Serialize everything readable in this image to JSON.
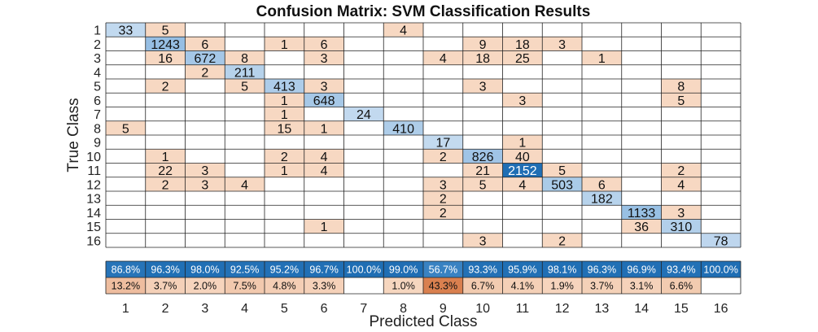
{
  "chart_data": {
    "type": "heatmap",
    "title": "Confusion Matrix: SVM Classification Results",
    "xlabel": "Predicted Class",
    "ylabel": "True Class",
    "classes": [
      "1",
      "2",
      "3",
      "4",
      "5",
      "6",
      "7",
      "8",
      "9",
      "10",
      "11",
      "12",
      "13",
      "14",
      "15",
      "16"
    ],
    "matrix": [
      [
        33,
        5,
        0,
        0,
        0,
        0,
        0,
        4,
        0,
        0,
        0,
        0,
        0,
        0,
        0,
        0
      ],
      [
        0,
        1243,
        6,
        0,
        1,
        6,
        0,
        0,
        0,
        9,
        18,
        3,
        0,
        0,
        0,
        0
      ],
      [
        0,
        16,
        672,
        8,
        0,
        3,
        0,
        0,
        4,
        18,
        25,
        0,
        1,
        0,
        0,
        0
      ],
      [
        0,
        0,
        2,
        211,
        0,
        0,
        0,
        0,
        0,
        0,
        0,
        0,
        0,
        0,
        0,
        0
      ],
      [
        0,
        2,
        0,
        5,
        413,
        3,
        0,
        0,
        0,
        3,
        0,
        0,
        0,
        0,
        8,
        0
      ],
      [
        0,
        0,
        0,
        0,
        1,
        648,
        0,
        0,
        0,
        0,
        3,
        0,
        0,
        0,
        5,
        0
      ],
      [
        0,
        0,
        0,
        0,
        1,
        0,
        24,
        0,
        0,
        0,
        0,
        0,
        0,
        0,
        0,
        0
      ],
      [
        5,
        0,
        0,
        0,
        15,
        1,
        0,
        410,
        0,
        0,
        0,
        0,
        0,
        0,
        0,
        0
      ],
      [
        0,
        0,
        0,
        0,
        0,
        0,
        0,
        0,
        17,
        0,
        1,
        0,
        0,
        0,
        0,
        0
      ],
      [
        0,
        1,
        0,
        0,
        2,
        4,
        0,
        0,
        2,
        826,
        40,
        0,
        0,
        0,
        0,
        0
      ],
      [
        0,
        22,
        3,
        0,
        1,
        4,
        0,
        0,
        0,
        21,
        2152,
        5,
        0,
        0,
        2,
        0
      ],
      [
        0,
        2,
        3,
        4,
        0,
        0,
        0,
        0,
        3,
        5,
        4,
        503,
        6,
        0,
        4,
        0
      ],
      [
        0,
        0,
        0,
        0,
        0,
        0,
        0,
        0,
        2,
        0,
        0,
        0,
        182,
        0,
        0,
        0
      ],
      [
        0,
        0,
        0,
        0,
        0,
        0,
        0,
        0,
        2,
        0,
        0,
        0,
        0,
        1133,
        3,
        0
      ],
      [
        0,
        0,
        0,
        0,
        0,
        1,
        0,
        0,
        0,
        0,
        0,
        0,
        0,
        36,
        310,
        0
      ],
      [
        0,
        0,
        0,
        0,
        0,
        0,
        0,
        0,
        0,
        3,
        0,
        2,
        0,
        0,
        0,
        78
      ]
    ],
    "column_summary": {
      "correct_pct": [
        "86.8%",
        "96.3%",
        "98.0%",
        "92.5%",
        "95.2%",
        "96.7%",
        "100.0%",
        "99.0%",
        "56.7%",
        "93.3%",
        "95.9%",
        "98.1%",
        "96.3%",
        "96.9%",
        "93.4%",
        "100.0%"
      ],
      "incorrect_pct": [
        "13.2%",
        "3.7%",
        "2.0%",
        "7.5%",
        "4.8%",
        "3.3%",
        "",
        "1.0%",
        "43.3%",
        "6.7%",
        "4.1%",
        "1.9%",
        "3.7%",
        "3.1%",
        "6.6%",
        ""
      ]
    },
    "colors": {
      "correct_light": "#c7dcf0",
      "correct_dark": "#1f6eb4",
      "incorrect_light": "#f7d8c2",
      "incorrect_dark": "#d9804f",
      "grid": "#222222",
      "text": "#111111"
    }
  }
}
